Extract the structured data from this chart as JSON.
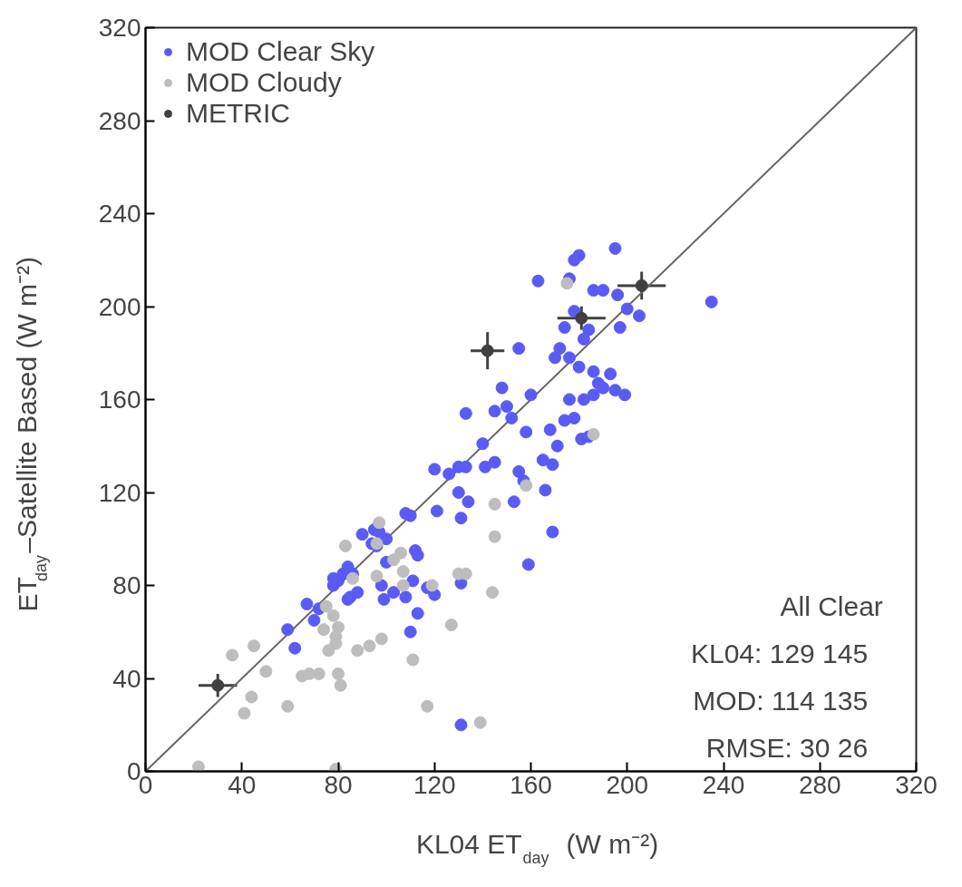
{
  "chart_data": {
    "type": "scatter",
    "xlabel": "KL04 ET$_{day}$ (W m⁻²)",
    "ylabel": "ET$_{day}$–Satellite Based (W m⁻²)",
    "xlim": [
      0,
      320
    ],
    "ylim": [
      0,
      320
    ],
    "xticks": [
      0,
      40,
      80,
      120,
      160,
      200,
      240,
      280,
      320
    ],
    "yticks": [
      0,
      40,
      80,
      120,
      160,
      200,
      240,
      280,
      320
    ],
    "grid": false,
    "legend": "top left",
    "marker": "circle",
    "annotations": [
      "All   Clear",
      "KL04:   129   145",
      "MOD:   114   135",
      "RMSE:   30   26"
    ],
    "series": [
      {
        "type": "line",
        "marker": "none",
        "color": "#666666",
        "x": [
          0,
          320
        ],
        "values": [
          0,
          320
        ]
      },
      {
        "name": "MOD Clear Sky",
        "color": "#5a5af5",
        "x": [
          235,
          195,
          180,
          178,
          163,
          176,
          186,
          190,
          178,
          174,
          184,
          196,
          200,
          205,
          197,
          182,
          172,
          155,
          148,
          150,
          152,
          145,
          160,
          133,
          140,
          133,
          145,
          155,
          157,
          153,
          165,
          168,
          171,
          176,
          174,
          178,
          182,
          184,
          188,
          193,
          195,
          199,
          190,
          186,
          180,
          186,
          181,
          166,
          169,
          158,
          170,
          176,
          169,
          159,
          130,
          126,
          120,
          130,
          121,
          131,
          134,
          141,
          131,
          131,
          120,
          117,
          113,
          110,
          108,
          111,
          113,
          112,
          103,
          99,
          98,
          97,
          95,
          100,
          94,
          100,
          96,
          90,
          86,
          85,
          88,
          84,
          80,
          82,
          84,
          78,
          78,
          72,
          70,
          67,
          59,
          62,
          108,
          110
        ],
        "values": [
          202,
          225,
          222,
          220,
          211,
          212,
          207,
          207,
          198,
          191,
          190,
          205,
          199,
          196,
          191,
          186,
          182,
          182,
          165,
          157,
          152,
          155,
          162,
          154,
          141,
          131,
          133,
          129,
          125,
          116,
          134,
          147,
          140,
          160,
          151,
          152,
          160,
          144,
          167,
          171,
          164,
          162,
          165,
          172,
          174,
          162,
          143,
          121,
          132,
          146,
          178,
          178,
          103,
          89,
          131,
          128,
          130,
          120,
          112,
          109,
          116,
          131,
          20,
          81,
          76,
          79,
          68,
          60,
          75,
          82,
          93,
          95,
          77,
          74,
          80,
          103,
          104,
          100,
          98,
          90,
          97,
          102,
          85,
          75,
          77,
          74,
          82,
          85,
          88,
          80,
          83,
          70,
          65,
          72,
          61,
          53,
          111,
          110
        ]
      },
      {
        "name": "MOD Cloudy",
        "color": "#bdbdbd",
        "x": [
          22,
          79,
          41,
          44,
          36,
          45,
          50,
          59,
          65,
          68,
          72,
          76,
          79,
          80,
          81,
          80,
          78,
          75,
          83,
          86,
          88,
          93,
          98,
          96,
          96,
          97,
          103,
          106,
          107,
          111,
          117,
          119,
          127,
          130,
          133,
          139,
          144,
          145,
          145,
          158,
          186,
          175,
          107,
          74,
          79
        ],
        "values": [
          2,
          1,
          25,
          32,
          50,
          54,
          43,
          28,
          41,
          42,
          42,
          52,
          55,
          42,
          37,
          62,
          67,
          71,
          97,
          83,
          52,
          54,
          57,
          84,
          98,
          107,
          91,
          94,
          86,
          48,
          28,
          80,
          63,
          85,
          85,
          21,
          77,
          101,
          115,
          123,
          145,
          210,
          80,
          61,
          58
        ]
      },
      {
        "name": "METRIC",
        "color": "#404040",
        "x": [
          30,
          142,
          181,
          206
        ],
        "values": [
          37,
          181,
          195,
          209
        ],
        "errors": [
          5,
          8,
          5,
          6
        ],
        "xerrors": [
          8,
          7,
          10,
          10
        ]
      }
    ]
  }
}
